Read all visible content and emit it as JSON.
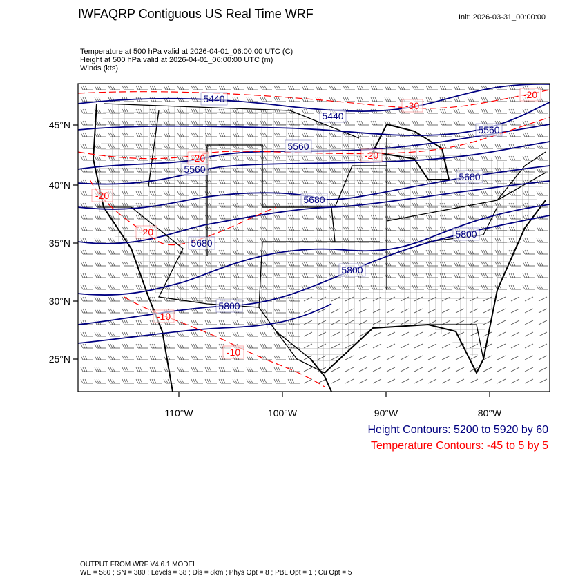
{
  "title": "IWFAQRP Contiguous US Real Time WRF",
  "init": "Init: 2026-03-31_00:00:00",
  "fields": [
    "Temperature at 500 hPa valid at 2026-04-01_06:00:00 UTC   (C)",
    "Height at 500 hPa valid at 2026-04-01_06:00:00 UTC   (m)",
    "Winds   (kts)"
  ],
  "lat_labels": [
    "45°N",
    "40°N",
    "35°N",
    "30°N",
    "25°N"
  ],
  "lon_labels": [
    "110°W",
    "100°W",
    "90°W",
    "80°W"
  ],
  "height_contour_labels": [
    "5440",
    "5440",
    "5560",
    "5560",
    "5560",
    "5680",
    "5680",
    "5680",
    "5800",
    "5800",
    "5800"
  ],
  "temperature_contour_labels": [
    "-30",
    "-20",
    "-20",
    "-20",
    "-20",
    "-20",
    "-10",
    "-10"
  ],
  "legend": {
    "height": "Height Contours: 5200 to 5920 by 60",
    "temperature": "Temperature Contours: -45 to 5 by 5"
  },
  "footer": {
    "line1": "OUTPUT FROM WRF V4.6.1 MODEL",
    "line2": "WE = 580 ; SN = 380 ; Levels = 38 ; Dis = 8km ; Phys Opt = 8 ; PBL Opt = 1 ; Cu Opt = 5"
  },
  "colors": {
    "height": "#000080",
    "temperature": "#ff0000",
    "map": "#000000"
  }
}
